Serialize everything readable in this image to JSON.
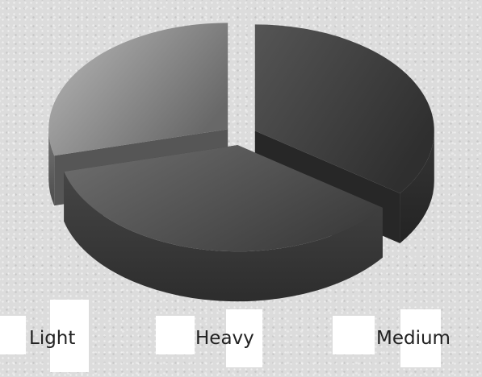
{
  "chart_data": {
    "type": "pie",
    "style": "3d-exploded",
    "categories": [
      "Light",
      "Heavy",
      "Medium"
    ],
    "values": [
      35,
      36,
      29
    ],
    "grid": false,
    "legend_placement": "bottom",
    "colors": {
      "Light": "#3f3f3f",
      "Heavy": "#525252",
      "Medium": "#8a8a8a",
      "background": "#dcdcdc"
    }
  }
}
